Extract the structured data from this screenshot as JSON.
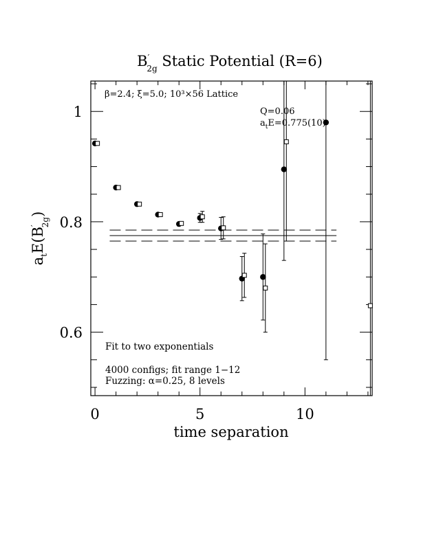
{
  "chart_data": {
    "type": "scatter",
    "title_main": "B",
    "title_sup": "′",
    "title_sub": "2g",
    "title_rest": " Static Potential (R=6)",
    "xlabel": "time separation",
    "ylabel_main": "a",
    "ylabel_sub1": "t",
    "ylabel_mid": "E(B",
    "ylabel_sup": "′",
    "ylabel_sub2": "2g",
    "ylabel_end": ")",
    "xlim": [
      -0.2,
      13.2
    ],
    "ylim": [
      0.485,
      1.055
    ],
    "x_ticks": [
      0,
      5,
      10
    ],
    "x_tick_labels": [
      "0",
      "5",
      "10"
    ],
    "y_ticks": [
      0.6,
      0.8,
      1.0
    ],
    "y_tick_labels": [
      "0.6",
      "0.8",
      "1"
    ],
    "top_left_note": "β=2.4; ξ=5.0; 10³×56 Lattice",
    "fit_quality": "Q=0.06",
    "fit_energy_prefix": "a",
    "fit_energy_sub": "t",
    "fit_energy_rest": "E=0.775(10)",
    "fit_label": "Fit to two exponentials",
    "configs_label": "4000 configs; fit range 1−12",
    "fuzzing_label": "Fuzzing: α=0.25, 8 levels",
    "fit": {
      "x_range": [
        0.7,
        11.5
      ],
      "value": 0.775,
      "error": 0.01
    },
    "series": [
      {
        "marker": "filled-circle",
        "points": [
          {
            "x": 0,
            "y": 0.942,
            "err": 0.003
          },
          {
            "x": 1,
            "y": 0.862,
            "err": 0.003
          },
          {
            "x": 2,
            "y": 0.832,
            "err": 0.003
          },
          {
            "x": 3,
            "y": 0.813,
            "err": 0.003
          },
          {
            "x": 4,
            "y": 0.796,
            "err": 0.003
          },
          {
            "x": 5,
            "y": 0.807,
            "err": 0.008
          },
          {
            "x": 6,
            "y": 0.788,
            "err": 0.02
          },
          {
            "x": 7,
            "y": 0.697,
            "err": 0.04
          },
          {
            "x": 8,
            "y": 0.7,
            "err": 0.078
          },
          {
            "x": 9,
            "y": 0.895,
            "err": 0.165
          },
          {
            "x": 11,
            "y": 0.98,
            "err": 0.43
          }
        ]
      },
      {
        "marker": "open-square",
        "points": [
          {
            "x": 0,
            "y": 0.942,
            "err": 0.003
          },
          {
            "x": 1,
            "y": 0.862,
            "err": 0.003
          },
          {
            "x": 2,
            "y": 0.832,
            "err": 0.003
          },
          {
            "x": 3,
            "y": 0.813,
            "err": 0.003
          },
          {
            "x": 4,
            "y": 0.797,
            "err": 0.003
          },
          {
            "x": 5,
            "y": 0.809,
            "err": 0.01
          },
          {
            "x": 6,
            "y": 0.789,
            "err": 0.02
          },
          {
            "x": 7,
            "y": 0.703,
            "err": 0.04
          },
          {
            "x": 8,
            "y": 0.68,
            "err": 0.08
          },
          {
            "x": 9,
            "y": 0.945,
            "err": 0.18
          },
          {
            "x": 13,
            "y": 0.648,
            "err": 0.42
          }
        ]
      }
    ]
  }
}
